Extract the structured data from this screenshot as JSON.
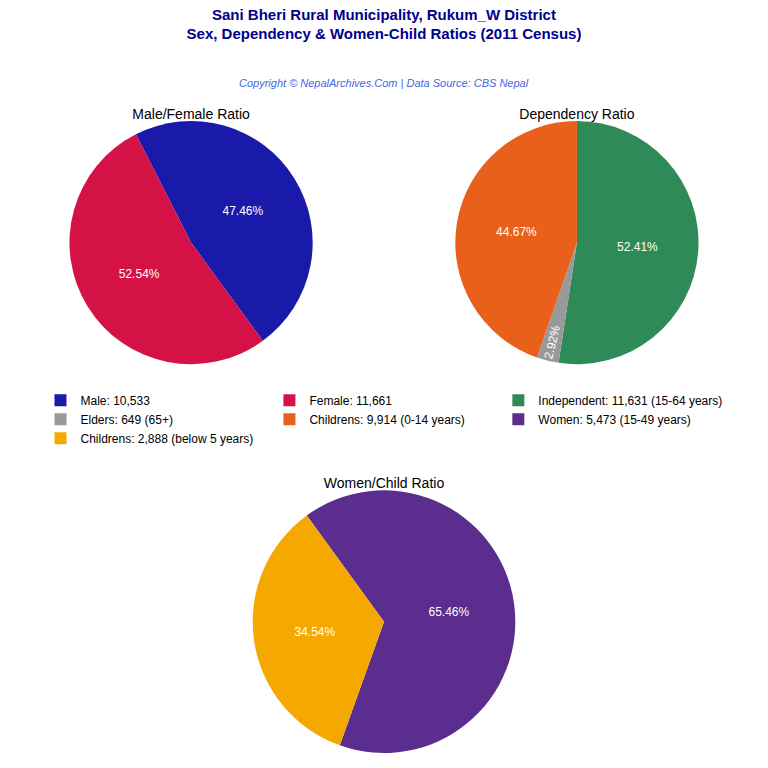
{
  "title": [
    "Sani Bheri Rural Municipality, Rukum_W District",
    "Sex, Dependency & Women-Child Ratios (2011 Census)"
  ],
  "subtitle": "Copyright © NepalArchives.Com | Data Source: CBS Nepal",
  "legend": "center",
  "chart_data": [
    {
      "type": "pie",
      "title": "Male/Female Ratio",
      "categories": [
        "Male: 10,533",
        "Female: 11,661"
      ],
      "values": [
        47.46,
        52.54
      ],
      "value_labels": [
        "47.46%",
        "52.54%"
      ],
      "colors": [
        "#1a1aaa",
        "#d41245"
      ],
      "data_labels": true
    },
    {
      "type": "pie",
      "title": "Dependency Ratio",
      "categories": [
        "Independent: 11,631 (15-64 years)",
        "Elders: 649 (65+)",
        "Childrens: 9,914 (0-14 years)"
      ],
      "values": [
        52.41,
        2.92,
        44.67
      ],
      "value_labels": [
        "52.41%",
        "2.92%",
        "44.67%"
      ],
      "colors": [
        "#2e8b57",
        "#999999",
        "#e8601a"
      ],
      "data_labels": true
    },
    {
      "type": "pie",
      "title": "Women/Child Ratio",
      "categories": [
        "Women: 5,473 (15-49 years)",
        "Childrens: 2,888 (below 5 years)"
      ],
      "values": [
        65.46,
        34.54
      ],
      "value_labels": [
        "65.46%",
        "34.54%"
      ],
      "colors": [
        "#5b2d8e",
        "#f5a800"
      ],
      "data_labels": true
    }
  ]
}
